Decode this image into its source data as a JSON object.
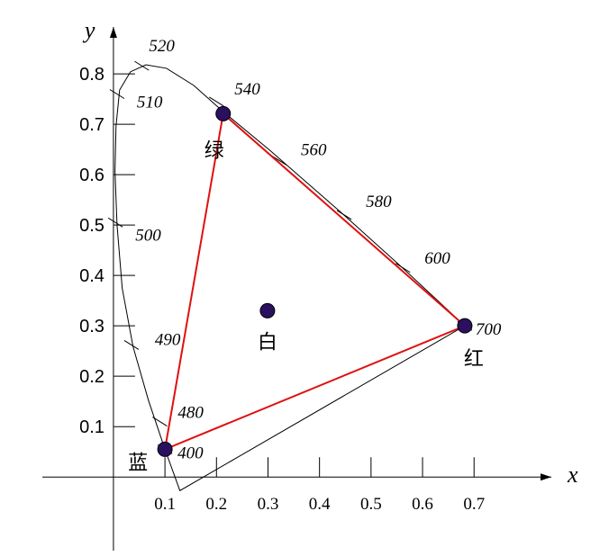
{
  "chart_data": {
    "type": "scatter",
    "axis_titles": {
      "x": "x",
      "y": "y"
    },
    "xlim": [
      -0.138,
      0.85
    ],
    "ylim": [
      -0.146,
      0.893
    ],
    "xticks": [
      0.1,
      0.2,
      0.3,
      0.4,
      0.5,
      0.6,
      0.7
    ],
    "yticks": [
      0.1,
      0.2,
      0.3,
      0.4,
      0.5,
      0.6,
      0.7,
      0.8
    ],
    "locus": {
      "x": [
        0.129,
        0.1,
        0.068,
        0.038,
        0.017,
        0.007,
        0.003,
        0.005,
        0.012,
        0.033,
        0.063,
        0.103,
        0.156,
        0.213,
        0.304,
        0.444,
        0.558,
        0.682
      ],
      "y": [
        -0.027,
        0.055,
        0.152,
        0.259,
        0.375,
        0.5,
        0.607,
        0.696,
        0.768,
        0.804,
        0.818,
        0.811,
        0.777,
        0.725,
        0.648,
        0.523,
        0.418,
        0.3
      ]
    },
    "wavelengths": [
      {
        "value": 520,
        "x": 0.055,
        "y": 0.816
      },
      {
        "value": 510,
        "x": 0.007,
        "y": 0.76
      },
      {
        "value": 540,
        "x": 0.2,
        "y": 0.745
      },
      {
        "value": 560,
        "x": 0.322,
        "y": 0.628
      },
      {
        "value": 580,
        "x": 0.448,
        "y": 0.52
      },
      {
        "value": 600,
        "x": 0.562,
        "y": 0.415
      },
      {
        "value": 700,
        "x": 0.682,
        "y": 0.3
      },
      {
        "value": 500,
        "x": 0.004,
        "y": 0.505
      },
      {
        "value": 490,
        "x": 0.035,
        "y": 0.262
      },
      {
        "value": 480,
        "x": 0.09,
        "y": 0.11
      },
      {
        "value": 400,
        "x": 0.1,
        "y": 0.055
      }
    ],
    "points": [
      {
        "label": "绿",
        "x": 0.213,
        "y": 0.721
      },
      {
        "label": "红",
        "x": 0.682,
        "y": 0.3
      },
      {
        "label": "蓝",
        "x": 0.1,
        "y": 0.055
      },
      {
        "label": "白",
        "x": 0.299,
        "y": 0.33
      }
    ],
    "point_color": "#2b1060",
    "triangle_color": "#e01010",
    "locus_color": "#000000"
  }
}
